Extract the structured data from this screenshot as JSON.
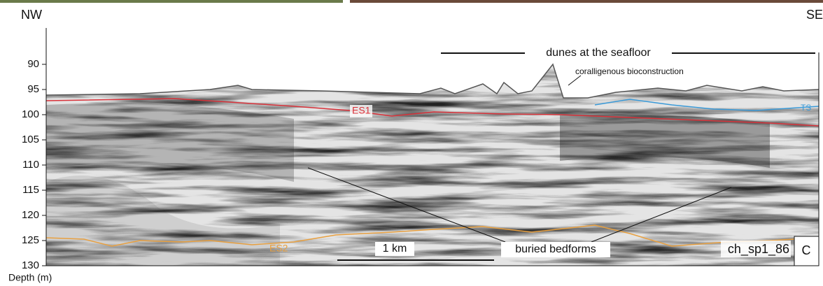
{
  "header": {
    "left": "NW",
    "right": "SE"
  },
  "depth_axis": {
    "label": "Depth (m)",
    "ticks": [
      90,
      95,
      100,
      105,
      110,
      115,
      120,
      125,
      130
    ]
  },
  "annotations": {
    "dunes": "dunes at the seafloor",
    "bioconstruction": "coralligenous bioconstruction",
    "es1": "ES1",
    "ts": "TS",
    "es2": "ES2",
    "scale": "1 km",
    "buried": "buried bedforms",
    "profile_id": "ch_sp1_86",
    "panel": "C"
  }
}
